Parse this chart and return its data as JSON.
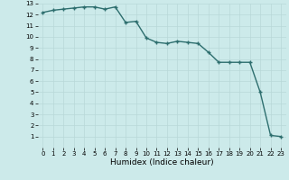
{
  "x": [
    0,
    1,
    2,
    3,
    4,
    5,
    6,
    7,
    8,
    9,
    10,
    11,
    12,
    13,
    14,
    15,
    16,
    17,
    18,
    19,
    20,
    21,
    22,
    23
  ],
  "y": [
    12.2,
    12.4,
    12.5,
    12.6,
    12.7,
    12.7,
    12.5,
    12.7,
    11.3,
    11.4,
    9.9,
    9.5,
    9.4,
    9.6,
    9.5,
    9.4,
    8.6,
    7.7,
    7.7,
    7.7,
    7.7,
    5.0,
    1.1,
    1.0
  ],
  "line_color": "#2d6e6e",
  "marker": "+",
  "marker_size": 3.5,
  "bg_color": "#cceaea",
  "grid_color": "#b8d8d8",
  "xlabel": "Humidex (Indice chaleur)",
  "ylim": [
    0,
    13
  ],
  "xlim": [
    -0.5,
    23.5
  ],
  "yticks": [
    1,
    2,
    3,
    4,
    5,
    6,
    7,
    8,
    9,
    10,
    11,
    12,
    13
  ],
  "xticks": [
    0,
    1,
    2,
    3,
    4,
    5,
    6,
    7,
    8,
    9,
    10,
    11,
    12,
    13,
    14,
    15,
    16,
    17,
    18,
    19,
    20,
    21,
    22,
    23
  ],
  "tick_fontsize": 5.0,
  "xlabel_fontsize": 6.5,
  "line_width": 1.0,
  "marker_color": "#2d6e6e"
}
